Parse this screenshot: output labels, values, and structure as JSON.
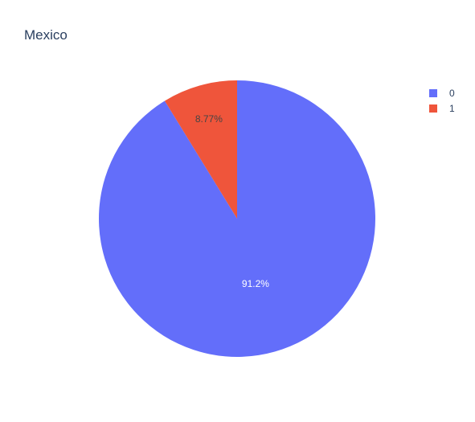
{
  "chart_data": {
    "type": "pie",
    "title": "Mexico",
    "labels": [
      "0",
      "1"
    ],
    "values": [
      91.23,
      8.77
    ],
    "text_labels": [
      "91.2%",
      "8.77%"
    ],
    "colors": [
      "#636efa",
      "#ef553b"
    ],
    "label_colors": [
      "#ffffff",
      "#444444"
    ],
    "start_angle_deg": 90,
    "direction": "clockwise",
    "legend_position": "top-right"
  }
}
